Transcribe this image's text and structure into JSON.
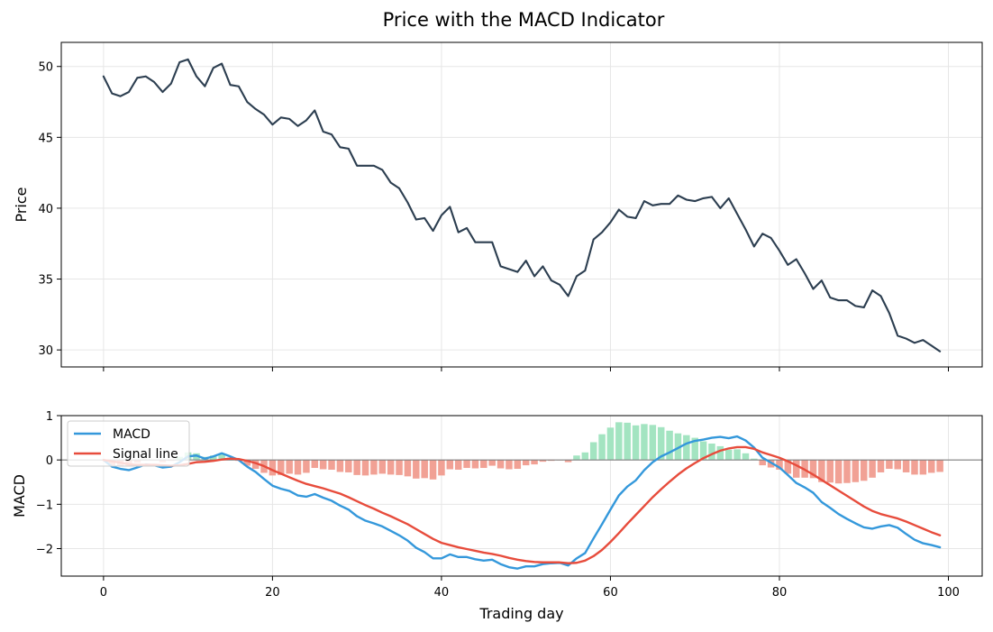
{
  "chart_data": [
    {
      "type": "line",
      "title": "Price with the MACD Indicator",
      "xlabel": "",
      "ylabel": "Price",
      "xlim": [
        -5,
        104
      ],
      "ylim": [
        28.8,
        51.7
      ],
      "xticks": [
        0,
        20,
        40,
        60,
        80,
        100
      ],
      "yticks": [
        30,
        35,
        40,
        45,
        50
      ],
      "ytick_labels": [
        "30",
        "35",
        "40",
        "45",
        "50"
      ],
      "grid": true,
      "series": [
        {
          "color": "#2c3e50",
          "x": [
            0,
            1,
            2,
            3,
            4,
            5,
            6,
            7,
            8,
            9,
            10,
            11,
            12,
            13,
            14,
            15,
            16,
            17,
            18,
            19,
            20,
            21,
            22,
            23,
            24,
            25,
            26,
            27,
            28,
            29,
            30,
            31,
            32,
            33,
            34,
            35,
            36,
            37,
            38,
            39,
            40,
            41,
            42,
            43,
            44,
            45,
            46,
            47,
            48,
            49,
            50,
            51,
            52,
            53,
            54,
            55,
            56,
            57,
            58,
            59,
            60,
            61,
            62,
            63,
            64,
            65,
            66,
            67,
            68,
            69,
            70,
            71,
            72,
            73,
            74,
            75,
            76,
            77,
            78,
            79,
            80,
            81,
            82,
            83,
            84,
            85,
            86,
            87,
            88,
            89,
            90,
            91,
            92,
            93,
            94,
            95,
            96,
            97,
            98,
            99
          ],
          "values": [
            49.3,
            48.1,
            47.9,
            48.2,
            49.2,
            49.3,
            48.9,
            48.2,
            48.8,
            50.3,
            50.5,
            49.3,
            48.6,
            49.9,
            50.2,
            48.7,
            48.6,
            47.5,
            47.0,
            46.6,
            45.9,
            46.4,
            46.3,
            45.8,
            46.2,
            46.9,
            45.4,
            45.2,
            44.3,
            44.2,
            43.0,
            43.0,
            43.0,
            42.7,
            41.8,
            41.4,
            40.4,
            39.2,
            39.3,
            38.4,
            39.5,
            40.1,
            38.3,
            38.6,
            37.6,
            37.6,
            37.6,
            35.9,
            35.7,
            35.5,
            36.3,
            35.2,
            35.9,
            34.9,
            34.6,
            33.8,
            35.2,
            35.6,
            37.8,
            38.3,
            39.0,
            39.9,
            39.4,
            39.3,
            40.5,
            40.2,
            40.3,
            40.3,
            40.9,
            40.6,
            40.5,
            40.7,
            40.8,
            40.0,
            40.7,
            39.6,
            38.5,
            37.3,
            38.2,
            37.9,
            37.0,
            36.0,
            36.4,
            35.4,
            34.3,
            34.9,
            33.7,
            33.5,
            33.5,
            33.1,
            33.0,
            34.2,
            33.8,
            32.6,
            31.0,
            30.8,
            30.5,
            30.7,
            30.3,
            29.9
          ]
        }
      ]
    },
    {
      "type": "line",
      "title": "",
      "xlabel": "Trading day",
      "ylabel": "MACD",
      "xlim": [
        -5,
        104
      ],
      "ylim": [
        -2.62,
        1.0
      ],
      "xticks": [
        0,
        20,
        40,
        60,
        80,
        100
      ],
      "xtick_labels": [
        "0",
        "20",
        "40",
        "60",
        "80",
        "100"
      ],
      "yticks": [
        -2,
        -1,
        0,
        1
      ],
      "ytick_labels": [
        "−2",
        "−1",
        "0",
        "1"
      ],
      "grid": true,
      "legend_position": "top-left",
      "zero_line": true,
      "x": [
        0,
        1,
        2,
        3,
        4,
        5,
        6,
        7,
        8,
        9,
        10,
        11,
        12,
        13,
        14,
        15,
        16,
        17,
        18,
        19,
        20,
        21,
        22,
        23,
        24,
        25,
        26,
        27,
        28,
        29,
        30,
        31,
        32,
        33,
        34,
        35,
        36,
        37,
        38,
        39,
        40,
        41,
        42,
        43,
        44,
        45,
        46,
        47,
        48,
        49,
        50,
        51,
        52,
        53,
        54,
        55,
        56,
        57,
        58,
        59,
        60,
        61,
        62,
        63,
        64,
        65,
        66,
        67,
        68,
        69,
        70,
        71,
        72,
        73,
        74,
        75,
        76,
        77,
        78,
        79,
        80,
        81,
        82,
        83,
        84,
        85,
        86,
        87,
        88,
        89,
        90,
        91,
        92,
        93,
        94,
        95,
        96,
        97,
        98,
        99
      ],
      "series": [
        {
          "name": "MACD",
          "color": "#3498db",
          "values": [
            0.0,
            -0.15,
            -0.2,
            -0.23,
            -0.17,
            -0.1,
            -0.12,
            -0.17,
            -0.15,
            -0.05,
            0.08,
            0.1,
            0.03,
            0.08,
            0.15,
            0.08,
            0.0,
            -0.15,
            -0.27,
            -0.43,
            -0.58,
            -0.65,
            -0.7,
            -0.8,
            -0.83,
            -0.77,
            -0.85,
            -0.92,
            -1.03,
            -1.12,
            -1.27,
            -1.37,
            -1.43,
            -1.5,
            -1.6,
            -1.7,
            -1.82,
            -1.98,
            -2.08,
            -2.22,
            -2.22,
            -2.13,
            -2.19,
            -2.19,
            -2.24,
            -2.27,
            -2.25,
            -2.35,
            -2.42,
            -2.45,
            -2.4,
            -2.4,
            -2.35,
            -2.33,
            -2.32,
            -2.38,
            -2.22,
            -2.1,
            -1.77,
            -1.45,
            -1.12,
            -0.8,
            -0.6,
            -0.46,
            -0.23,
            -0.05,
            0.08,
            0.17,
            0.27,
            0.37,
            0.43,
            0.46,
            0.5,
            0.52,
            0.49,
            0.53,
            0.44,
            0.28,
            0.05,
            -0.06,
            -0.17,
            -0.34,
            -0.52,
            -0.62,
            -0.74,
            -0.95,
            -1.08,
            -1.22,
            -1.33,
            -1.43,
            -1.52,
            -1.55,
            -1.5,
            -1.47,
            -1.53,
            -1.67,
            -1.8,
            -1.88,
            -1.92,
            -1.97
          ]
        },
        {
          "name": "Signal line",
          "color": "#e74c3c",
          "values": [
            0.0,
            -0.03,
            -0.06,
            -0.1,
            -0.11,
            -0.11,
            -0.11,
            -0.12,
            -0.13,
            -0.12,
            -0.09,
            -0.05,
            -0.04,
            -0.02,
            0.01,
            0.03,
            0.02,
            -0.02,
            -0.07,
            -0.14,
            -0.23,
            -0.31,
            -0.39,
            -0.47,
            -0.54,
            -0.59,
            -0.64,
            -0.7,
            -0.76,
            -0.84,
            -0.93,
            -1.02,
            -1.1,
            -1.19,
            -1.27,
            -1.36,
            -1.45,
            -1.56,
            -1.67,
            -1.78,
            -1.87,
            -1.92,
            -1.97,
            -2.01,
            -2.05,
            -2.09,
            -2.12,
            -2.16,
            -2.21,
            -2.25,
            -2.28,
            -2.3,
            -2.31,
            -2.31,
            -2.31,
            -2.33,
            -2.32,
            -2.27,
            -2.17,
            -2.03,
            -1.85,
            -1.65,
            -1.44,
            -1.24,
            -1.04,
            -0.84,
            -0.66,
            -0.49,
            -0.33,
            -0.19,
            -0.07,
            0.04,
            0.13,
            0.21,
            0.26,
            0.29,
            0.29,
            0.25,
            0.17,
            0.11,
            0.05,
            -0.03,
            -0.12,
            -0.22,
            -0.33,
            -0.45,
            -0.57,
            -0.69,
            -0.81,
            -0.93,
            -1.05,
            -1.15,
            -1.22,
            -1.27,
            -1.32,
            -1.39,
            -1.47,
            -1.55,
            -1.63,
            -1.7
          ]
        }
      ],
      "histogram": {
        "positive_color": "#a3e4c1",
        "negative_color": "#f1a195",
        "values": [
          0.0,
          -0.12,
          -0.14,
          -0.13,
          -0.06,
          0.01,
          -0.01,
          -0.05,
          -0.02,
          0.07,
          0.17,
          0.15,
          0.07,
          0.1,
          0.14,
          0.05,
          -0.02,
          -0.13,
          -0.2,
          -0.29,
          -0.35,
          -0.34,
          -0.31,
          -0.33,
          -0.29,
          -0.18,
          -0.21,
          -0.22,
          -0.27,
          -0.28,
          -0.34,
          -0.35,
          -0.33,
          -0.31,
          -0.33,
          -0.34,
          -0.37,
          -0.42,
          -0.41,
          -0.44,
          -0.35,
          -0.21,
          -0.22,
          -0.18,
          -0.19,
          -0.18,
          -0.13,
          -0.19,
          -0.21,
          -0.2,
          -0.12,
          -0.1,
          -0.04,
          -0.02,
          -0.01,
          -0.05,
          0.1,
          0.17,
          0.4,
          0.58,
          0.73,
          0.85,
          0.84,
          0.78,
          0.81,
          0.79,
          0.74,
          0.66,
          0.6,
          0.56,
          0.5,
          0.42,
          0.37,
          0.31,
          0.23,
          0.24,
          0.15,
          0.03,
          -0.12,
          -0.17,
          -0.22,
          -0.31,
          -0.4,
          -0.4,
          -0.41,
          -0.5,
          -0.51,
          -0.53,
          -0.52,
          -0.5,
          -0.47,
          -0.4,
          -0.28,
          -0.2,
          -0.21,
          -0.28,
          -0.33,
          -0.33,
          -0.29,
          -0.27
        ]
      }
    }
  ]
}
